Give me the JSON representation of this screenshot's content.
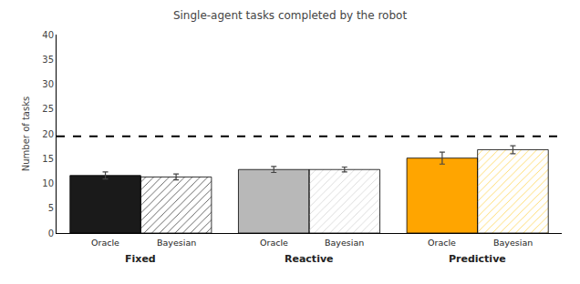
{
  "chart_data": {
    "type": "bar",
    "title": "Single-agent tasks completed by the robot",
    "ylabel": "Number of tasks",
    "categories": [
      "Fixed",
      "Reactive",
      "Predictive"
    ],
    "series": [
      {
        "name": "Oracle",
        "colors": [
          "#1a1a1a",
          "#b8b8b8",
          "#FFA500"
        ],
        "values": [
          11.6,
          12.8,
          15.1
        ],
        "errors": [
          0.7,
          0.6,
          1.2
        ]
      },
      {
        "name": "Bayesian",
        "colors": [
          "#555555",
          "#d8d8d8",
          "#FFD966"
        ],
        "values": [
          11.3,
          12.8,
          16.8
        ],
        "errors": [
          0.6,
          0.5,
          0.8
        ]
      }
    ],
    "reference_line": {
      "y": 19.5,
      "line_style": "dashed"
    },
    "ylim": [
      0,
      40
    ],
    "yticks": [
      0,
      5,
      10,
      15,
      20,
      25,
      30,
      35,
      40
    ],
    "grid": false,
    "legend": false
  }
}
